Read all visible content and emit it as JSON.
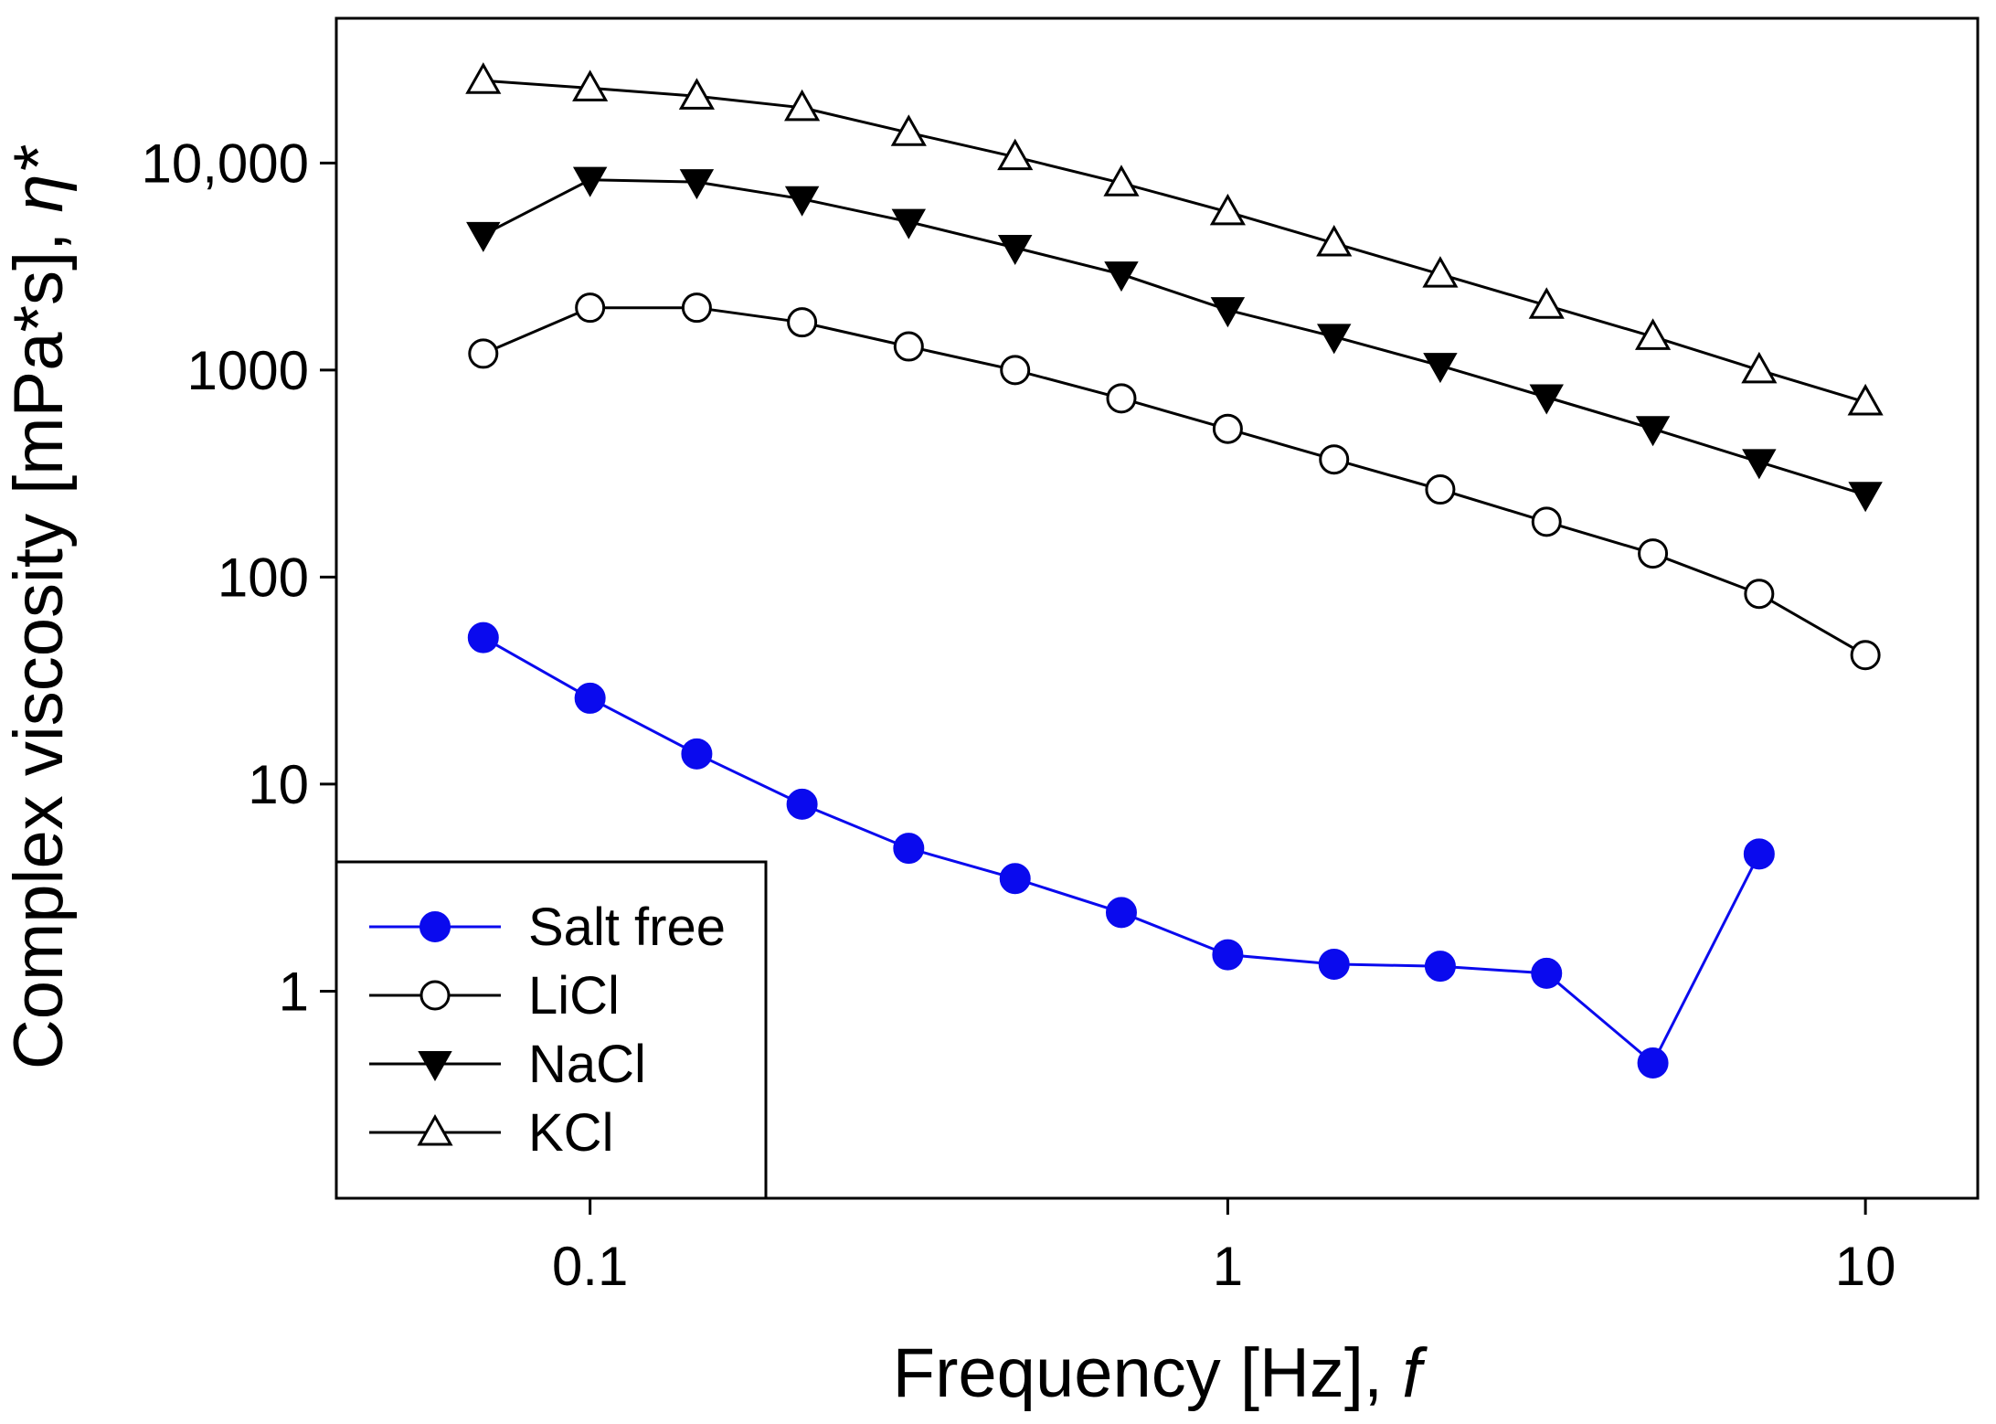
{
  "chart_data": {
    "type": "line",
    "title": "",
    "xlabel": "Frequency [Hz], ",
    "xlabel_symbol": "f",
    "ylabel": "Complex viscosity [mPa*s], ",
    "ylabel_symbol": "η*",
    "xscale": "log",
    "yscale": "log",
    "xlim": [
      0.04,
      15
    ],
    "ylim": [
      0.1,
      50000
    ],
    "xticks": [
      {
        "value": 0.1,
        "label": "0.1"
      },
      {
        "value": 1,
        "label": "1"
      },
      {
        "value": 10,
        "label": "10"
      }
    ],
    "yticks": [
      {
        "value": 1,
        "label": "1"
      },
      {
        "value": 10,
        "label": "10"
      },
      {
        "value": 100,
        "label": "100"
      },
      {
        "value": 1000,
        "label": "1000"
      },
      {
        "value": 10000,
        "label": "10,000"
      }
    ],
    "grid": false,
    "legend": "bottom-left",
    "x": [
      0.068,
      0.1,
      0.147,
      0.215,
      0.316,
      0.464,
      0.681,
      1.0,
      1.468,
      2.154,
      3.162,
      4.642,
      6.813,
      10.0
    ],
    "series": [
      {
        "name": "Salt free",
        "color": "#0a0aee",
        "marker": "circle-filled",
        "values": [
          51,
          26,
          14,
          8,
          4.9,
          3.5,
          2.4,
          1.5,
          1.35,
          1.32,
          1.22,
          0.45,
          4.6,
          null
        ]
      },
      {
        "name": "LiCl",
        "color": "#000000",
        "marker": "circle-open",
        "values": [
          1200,
          2000,
          2000,
          1700,
          1300,
          1000,
          730,
          520,
          370,
          265,
          185,
          130,
          83,
          42
        ]
      },
      {
        "name": "NaCl",
        "color": "#000000",
        "marker": "triangle-down-filled",
        "values": [
          4500,
          8300,
          8100,
          6700,
          5200,
          3900,
          2900,
          1950,
          1450,
          1050,
          740,
          520,
          360,
          250
        ]
      },
      {
        "name": "KCl",
        "color": "#000000",
        "marker": "triangle-up-open",
        "values": [
          25000,
          23000,
          21000,
          18500,
          14000,
          10700,
          8000,
          5800,
          4100,
          2900,
          2050,
          1450,
          1000,
          700
        ]
      }
    ]
  }
}
